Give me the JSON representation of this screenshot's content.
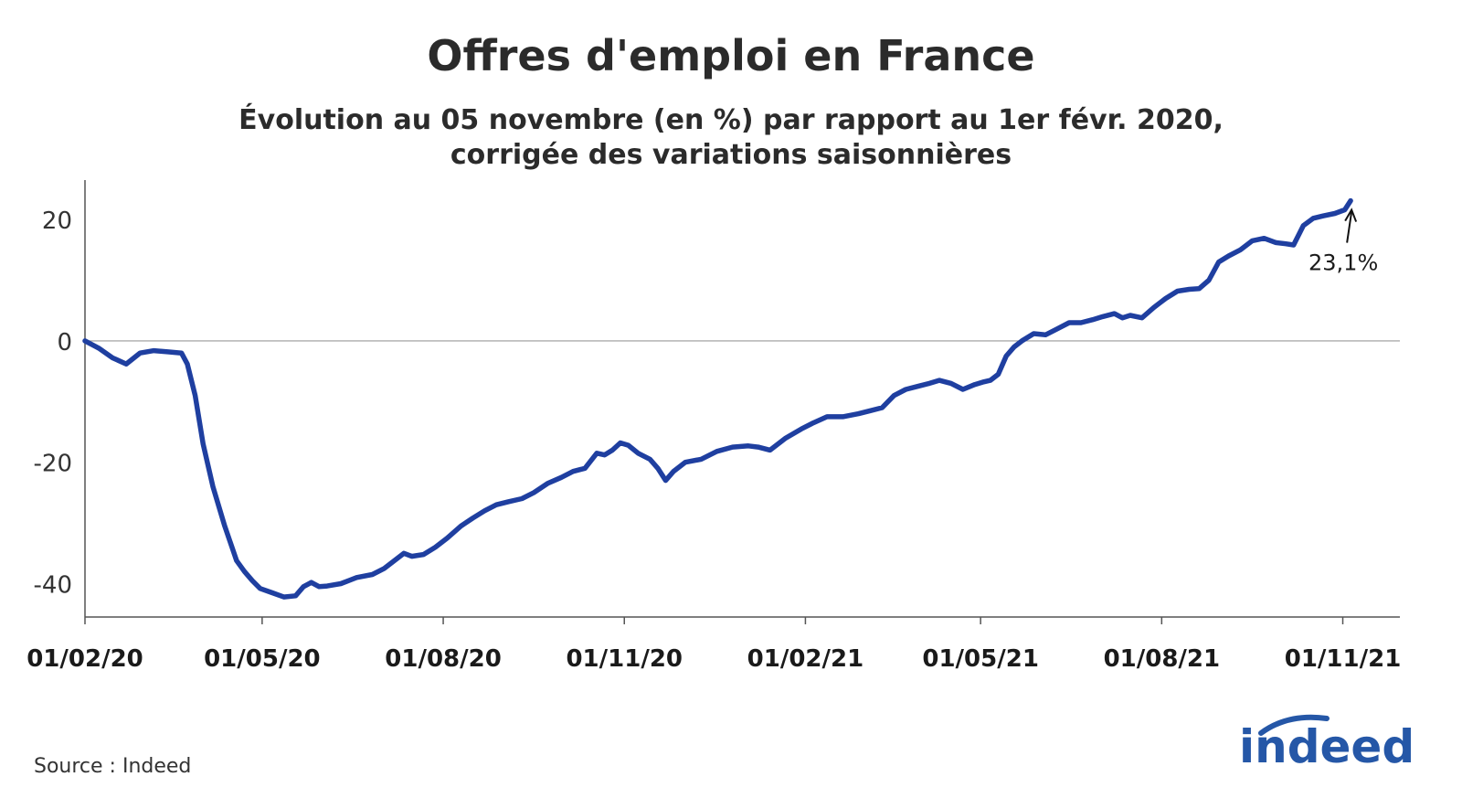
{
  "title": "Offres d'emploi en France",
  "subtitle_line1": "Évolution au 05 novembre (en %) par rapport au 1er févr. 2020,",
  "subtitle_line2": "corrigée des variations saisonnières",
  "source": "Source : Indeed",
  "logo_text": "indeed",
  "colors": {
    "line": "#1f3fa0",
    "logo": "#2557a7",
    "axis": "#555555",
    "zero": "#9a9a9a"
  },
  "chart_data": {
    "type": "line",
    "xlabel": "",
    "ylabel": "",
    "ylim": [
      -45.5,
      26.5
    ],
    "xlim": [
      "2020-02-01",
      "2021-11-30"
    ],
    "x_tick_labels": [
      "01/02/20",
      "01/05/20",
      "01/08/20",
      "01/11/20",
      "01/02/21",
      "01/05/21",
      "01/08/21",
      "01/11/21"
    ],
    "x_tick_dates": [
      "2020-02-01",
      "2020-05-01",
      "2020-08-01",
      "2020-11-01",
      "2021-02-01",
      "2021-05-01",
      "2021-08-01",
      "2021-11-01"
    ],
    "y_ticks": [
      20,
      0,
      -20,
      -40
    ],
    "y_tick_labels": [
      "20",
      "0",
      "-20",
      "-40"
    ],
    "zero_line": true,
    "grid": false,
    "annotation": {
      "text": "23,1%",
      "date": "2021-11-05",
      "value": 23.1
    },
    "series": [
      {
        "x": [
          "2020-02-01",
          "2020-02-08",
          "2020-02-15",
          "2020-02-22",
          "2020-02-29",
          "2020-03-07",
          "2020-03-14",
          "2020-03-21",
          "2020-03-24",
          "2020-03-28",
          "2020-04-01",
          "2020-04-06",
          "2020-04-12",
          "2020-04-18",
          "2020-04-22",
          "2020-04-26",
          "2020-04-30",
          "2020-05-06",
          "2020-05-12",
          "2020-05-18",
          "2020-05-22",
          "2020-05-26",
          "2020-05-30",
          "2020-06-03",
          "2020-06-10",
          "2020-06-18",
          "2020-06-26",
          "2020-07-02",
          "2020-07-08",
          "2020-07-12",
          "2020-07-16",
          "2020-07-22",
          "2020-07-28",
          "2020-08-03",
          "2020-08-10",
          "2020-08-16",
          "2020-08-22",
          "2020-08-28",
          "2020-09-03",
          "2020-09-10",
          "2020-09-16",
          "2020-09-23",
          "2020-09-30",
          "2020-10-06",
          "2020-10-12",
          "2020-10-18",
          "2020-10-22",
          "2020-10-26",
          "2020-10-30",
          "2020-11-03",
          "2020-11-08",
          "2020-11-14",
          "2020-11-18",
          "2020-11-22",
          "2020-11-26",
          "2020-12-02",
          "2020-12-10",
          "2020-12-18",
          "2020-12-26",
          "2021-01-03",
          "2021-01-08",
          "2021-01-14",
          "2021-01-22",
          "2021-01-30",
          "2021-02-05",
          "2021-02-12",
          "2021-02-20",
          "2021-02-28",
          "2021-03-06",
          "2021-03-12",
          "2021-03-18",
          "2021-03-24",
          "2021-03-30",
          "2021-04-05",
          "2021-04-10",
          "2021-04-16",
          "2021-04-22",
          "2021-04-28",
          "2021-05-02",
          "2021-05-06",
          "2021-05-10",
          "2021-05-14",
          "2021-05-18",
          "2021-05-22",
          "2021-05-28",
          "2021-06-03",
          "2021-06-09",
          "2021-06-15",
          "2021-06-21",
          "2021-06-27",
          "2021-07-02",
          "2021-07-08",
          "2021-07-12",
          "2021-07-16",
          "2021-07-22",
          "2021-07-28",
          "2021-08-03",
          "2021-08-09",
          "2021-08-15",
          "2021-08-20",
          "2021-08-25",
          "2021-08-30",
          "2021-09-04",
          "2021-09-10",
          "2021-09-16",
          "2021-09-22",
          "2021-09-28",
          "2021-10-03",
          "2021-10-07",
          "2021-10-12",
          "2021-10-17",
          "2021-10-22",
          "2021-10-28",
          "2021-11-02",
          "2021-11-05"
        ],
        "values": [
          0,
          -1.2,
          -2.8,
          -3.8,
          -2,
          -1.6,
          -1.8,
          -2,
          -3.8,
          -9,
          -17,
          -24,
          -30.5,
          -36.2,
          -38,
          -39.5,
          -40.8,
          -41.5,
          -42.2,
          -42,
          -40.5,
          -39.8,
          -40.5,
          -40.4,
          -40,
          -39,
          -38.5,
          -37.5,
          -36,
          -35,
          -35.5,
          -35.2,
          -34,
          -32.5,
          -30.5,
          -29.2,
          -28,
          -27,
          -26.5,
          -26,
          -25,
          -23.5,
          -22.5,
          -21.5,
          -21,
          -18.5,
          -18.8,
          -18,
          -16.8,
          -17.2,
          -18.5,
          -19.5,
          -21,
          -23,
          -21.5,
          -20,
          -19.5,
          -18.2,
          -17.5,
          -17.3,
          -17.5,
          -18,
          -16,
          -14.5,
          -13.5,
          -12.5,
          -12.5,
          -12,
          -11.5,
          -11,
          -9,
          -8,
          -7.5,
          -7,
          -6.5,
          -7,
          -8,
          -7.2,
          -6.8,
          -6.5,
          -5.5,
          -2.5,
          -1,
          0,
          1.2,
          1,
          2,
          3,
          3,
          3.5,
          4,
          4.5,
          3.8,
          4.2,
          3.8,
          5.5,
          7,
          8.2,
          8.5,
          8.6,
          10,
          13,
          14,
          15,
          16.5,
          16.9,
          16.2,
          16,
          15.8,
          19,
          20.2,
          20.6,
          21,
          21.6,
          23.1
        ]
      }
    ]
  }
}
